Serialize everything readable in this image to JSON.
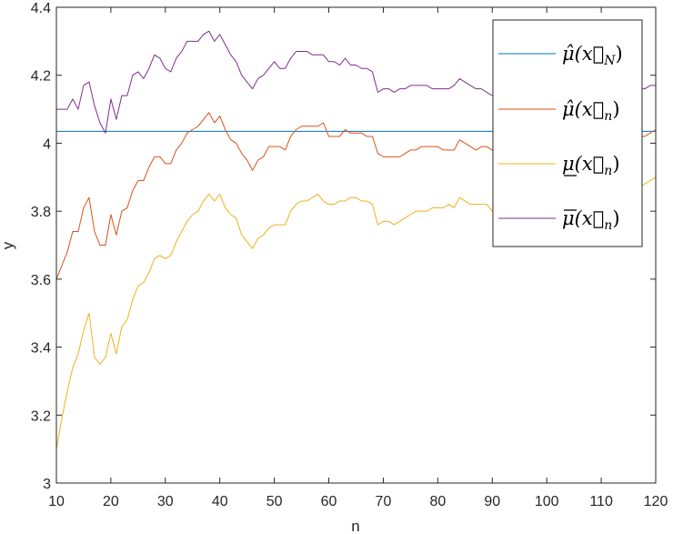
{
  "chart_data": {
    "type": "line",
    "xlabel": "n",
    "ylabel": "y",
    "xlim": [
      10,
      120
    ],
    "ylim": [
      3,
      4.4
    ],
    "xticks": [
      10,
      20,
      30,
      40,
      50,
      60,
      70,
      80,
      90,
      100,
      110,
      120
    ],
    "yticks": [
      3,
      3.2,
      3.4,
      3.6,
      3.8,
      4,
      4.2,
      4.4
    ],
    "xtick_labels": [
      "10",
      "20",
      "30",
      "40",
      "50",
      "60",
      "70",
      "80",
      "90",
      "100",
      "110",
      "120"
    ],
    "ytick_labels": [
      "3",
      "3.2",
      "3.4",
      "3.6",
      "3.8",
      "4",
      "4.2",
      "4.4"
    ],
    "grid": false,
    "legend_position": "top-right",
    "series": [
      {
        "name": "μ̂(x⃗_N)",
        "legend_base": "μ̂(x⃗",
        "legend_sub": "N",
        "legend_tail": ")",
        "color": "#0072BD",
        "x": [
          10,
          120
        ],
        "y": [
          4.035,
          4.035
        ]
      },
      {
        "name": "μ̂(x⃗_n)",
        "legend_base": "μ̂(x⃗",
        "legend_sub": "n",
        "legend_tail": ")",
        "color": "#D95319",
        "x": [
          10,
          11,
          12,
          13,
          14,
          15,
          16,
          17,
          18,
          19,
          20,
          21,
          22,
          23,
          24,
          25,
          26,
          27,
          28,
          29,
          30,
          31,
          32,
          33,
          34,
          35,
          36,
          37,
          38,
          39,
          40,
          41,
          42,
          43,
          44,
          45,
          46,
          47,
          48,
          49,
          50,
          51,
          52,
          53,
          54,
          55,
          56,
          57,
          58,
          59,
          60,
          61,
          62,
          63,
          64,
          65,
          66,
          67,
          68,
          69,
          70,
          71,
          72,
          73,
          74,
          75,
          76,
          77,
          78,
          79,
          80,
          81,
          82,
          83,
          84,
          85,
          86,
          87,
          88,
          89,
          90,
          91,
          92,
          93,
          94,
          95,
          96,
          97,
          98,
          99,
          100,
          101,
          102,
          103,
          104,
          105,
          106,
          107,
          108,
          109,
          110,
          111,
          112,
          113,
          114,
          115,
          116,
          117,
          118,
          119,
          120
        ],
        "y": [
          3.6,
          3.64,
          3.68,
          3.74,
          3.74,
          3.81,
          3.84,
          3.74,
          3.7,
          3.7,
          3.79,
          3.73,
          3.8,
          3.81,
          3.86,
          3.89,
          3.89,
          3.93,
          3.96,
          3.96,
          3.94,
          3.94,
          3.98,
          4.0,
          4.03,
          4.04,
          4.05,
          4.07,
          4.09,
          4.06,
          4.08,
          4.04,
          4.01,
          4.0,
          3.97,
          3.95,
          3.92,
          3.95,
          3.96,
          3.99,
          3.99,
          3.99,
          3.98,
          4.02,
          4.04,
          4.05,
          4.05,
          4.05,
          4.05,
          4.06,
          4.02,
          4.02,
          4.02,
          4.04,
          4.03,
          4.03,
          4.03,
          4.02,
          4.02,
          3.97,
          3.96,
          3.96,
          3.96,
          3.96,
          3.97,
          3.98,
          3.98,
          3.99,
          3.99,
          3.99,
          3.99,
          3.98,
          3.98,
          3.98,
          4.01,
          4.0,
          3.99,
          3.98,
          3.99,
          3.99,
          3.98,
          3.97,
          3.98,
          3.99,
          3.99,
          3.99,
          3.99,
          4.0,
          4.01,
          4.0,
          4.0,
          4.01,
          4.01,
          4.02,
          4.02,
          4.01,
          4.01,
          4.02,
          4.02,
          4.02,
          4.02,
          4.01,
          4.02,
          4.02,
          4.02,
          4.03,
          4.03,
          4.02,
          4.02,
          4.03,
          4.04
        ]
      },
      {
        "name": "μ̲(x⃗_n)",
        "legend_base": "μ(x⃗",
        "legend_sub": "n",
        "legend_tail": ")",
        "legend_decoration": "underline",
        "color": "#EDB120",
        "x": [
          10,
          11,
          12,
          13,
          14,
          15,
          16,
          17,
          18,
          19,
          20,
          21,
          22,
          23,
          24,
          25,
          26,
          27,
          28,
          29,
          30,
          31,
          32,
          33,
          34,
          35,
          36,
          37,
          38,
          39,
          40,
          41,
          42,
          43,
          44,
          45,
          46,
          47,
          48,
          49,
          50,
          51,
          52,
          53,
          54,
          55,
          56,
          57,
          58,
          59,
          60,
          61,
          62,
          63,
          64,
          65,
          66,
          67,
          68,
          69,
          70,
          71,
          72,
          73,
          74,
          75,
          76,
          77,
          78,
          79,
          80,
          81,
          82,
          83,
          84,
          85,
          86,
          87,
          88,
          89,
          90,
          91,
          92,
          93,
          94,
          95,
          96,
          97,
          98,
          99,
          100,
          101,
          102,
          103,
          104,
          105,
          106,
          107,
          108,
          109,
          110,
          111,
          112,
          113,
          114,
          115,
          116,
          117,
          118,
          119,
          120
        ],
        "y": [
          3.1,
          3.19,
          3.27,
          3.34,
          3.38,
          3.45,
          3.5,
          3.37,
          3.35,
          3.37,
          3.44,
          3.38,
          3.46,
          3.48,
          3.54,
          3.58,
          3.59,
          3.62,
          3.66,
          3.67,
          3.66,
          3.67,
          3.71,
          3.74,
          3.77,
          3.79,
          3.8,
          3.83,
          3.85,
          3.83,
          3.85,
          3.81,
          3.79,
          3.78,
          3.73,
          3.71,
          3.69,
          3.72,
          3.73,
          3.75,
          3.76,
          3.76,
          3.76,
          3.8,
          3.82,
          3.83,
          3.83,
          3.84,
          3.85,
          3.83,
          3.82,
          3.82,
          3.83,
          3.83,
          3.84,
          3.84,
          3.83,
          3.83,
          3.82,
          3.76,
          3.77,
          3.77,
          3.76,
          3.77,
          3.78,
          3.79,
          3.8,
          3.8,
          3.8,
          3.81,
          3.81,
          3.81,
          3.82,
          3.81,
          3.84,
          3.83,
          3.82,
          3.82,
          3.82,
          3.82,
          3.8,
          3.8,
          3.81,
          3.82,
          3.82,
          3.82,
          3.82,
          3.83,
          3.84,
          3.83,
          3.83,
          3.84,
          3.84,
          3.85,
          3.85,
          3.84,
          3.85,
          3.85,
          3.86,
          3.86,
          3.86,
          3.85,
          3.86,
          3.87,
          3.87,
          3.87,
          3.87,
          3.87,
          3.88,
          3.89,
          3.9
        ]
      },
      {
        "name": "μ̄(x⃗_n)",
        "legend_base": "μ(x⃗",
        "legend_sub": "n",
        "legend_tail": ")",
        "legend_decoration": "overline",
        "color": "#7E2F8E",
        "x": [
          10,
          11,
          12,
          13,
          14,
          15,
          16,
          17,
          18,
          19,
          20,
          21,
          22,
          23,
          24,
          25,
          26,
          27,
          28,
          29,
          30,
          31,
          32,
          33,
          34,
          35,
          36,
          37,
          38,
          39,
          40,
          41,
          42,
          43,
          44,
          45,
          46,
          47,
          48,
          49,
          50,
          51,
          52,
          53,
          54,
          55,
          56,
          57,
          58,
          59,
          60,
          61,
          62,
          63,
          64,
          65,
          66,
          67,
          68,
          69,
          70,
          71,
          72,
          73,
          74,
          75,
          76,
          77,
          78,
          79,
          80,
          81,
          82,
          83,
          84,
          85,
          86,
          87,
          88,
          89,
          90,
          91,
          92,
          93,
          94,
          95,
          96,
          97,
          98,
          99,
          100,
          101,
          102,
          103,
          104,
          105,
          106,
          107,
          108,
          109,
          110,
          111,
          112,
          113,
          114,
          115,
          116,
          117,
          118,
          119,
          120
        ],
        "y": [
          4.1,
          4.1,
          4.1,
          4.13,
          4.1,
          4.17,
          4.18,
          4.11,
          4.06,
          4.03,
          4.13,
          4.07,
          4.14,
          4.14,
          4.2,
          4.21,
          4.19,
          4.22,
          4.26,
          4.25,
          4.22,
          4.21,
          4.25,
          4.27,
          4.3,
          4.3,
          4.3,
          4.32,
          4.33,
          4.3,
          4.32,
          4.29,
          4.26,
          4.24,
          4.2,
          4.18,
          4.16,
          4.19,
          4.2,
          4.22,
          4.24,
          4.22,
          4.22,
          4.25,
          4.27,
          4.27,
          4.27,
          4.26,
          4.26,
          4.26,
          4.24,
          4.24,
          4.23,
          4.25,
          4.23,
          4.23,
          4.22,
          4.22,
          4.21,
          4.15,
          4.16,
          4.16,
          4.15,
          4.16,
          4.16,
          4.17,
          4.17,
          4.17,
          4.17,
          4.16,
          4.16,
          4.16,
          4.16,
          4.17,
          4.19,
          4.18,
          4.17,
          4.16,
          4.16,
          4.15,
          4.14,
          4.13,
          4.14,
          4.15,
          4.15,
          4.15,
          4.15,
          4.15,
          4.16,
          4.15,
          4.15,
          4.16,
          4.16,
          4.16,
          4.16,
          4.16,
          4.16,
          4.16,
          4.16,
          4.16,
          4.16,
          4.15,
          4.16,
          4.16,
          4.16,
          4.17,
          4.17,
          4.16,
          4.16,
          4.17,
          4.17
        ]
      }
    ]
  }
}
